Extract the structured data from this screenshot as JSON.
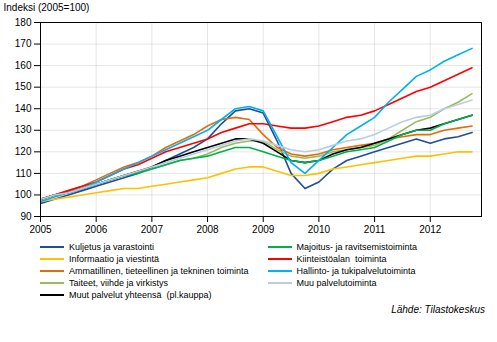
{
  "chart_data": {
    "type": "line",
    "ylabel": "Indeksi (2005=100)",
    "caption": "Lähde: Tilastokeskus",
    "xlim": [
      2005.0,
      2012.92
    ],
    "xticks": [
      2005,
      2006,
      2007,
      2008,
      2009,
      2010,
      2011,
      2012
    ],
    "ylim": [
      90,
      180
    ],
    "yticks": [
      90,
      100,
      110,
      120,
      130,
      140,
      150,
      160,
      170,
      180
    ],
    "grid": true,
    "legend": "bottom",
    "x": [
      2005.0,
      2005.25,
      2005.5,
      2005.75,
      2006.0,
      2006.25,
      2006.5,
      2006.75,
      2007.0,
      2007.25,
      2007.5,
      2007.75,
      2008.0,
      2008.25,
      2008.5,
      2008.75,
      2009.0,
      2009.25,
      2009.5,
      2009.75,
      2010.0,
      2010.25,
      2010.5,
      2010.75,
      2011.0,
      2011.25,
      2011.5,
      2011.75,
      2012.0,
      2012.25,
      2012.5,
      2012.75
    ],
    "series": [
      {
        "name": "Kuljetus ja varastointi",
        "color": "#1f4e99",
        "values": [
          96,
          98,
          100,
          102,
          104,
          106,
          108,
          110,
          113,
          116,
          119,
          122,
          126,
          133,
          139,
          140,
          138,
          125,
          110,
          103,
          106,
          112,
          116,
          118,
          120,
          122,
          124,
          126,
          124,
          126,
          127,
          129
        ]
      },
      {
        "name": "Informaatio ja viestintä",
        "color": "#ffc000",
        "values": [
          97,
          98,
          99,
          100,
          101,
          102,
          103,
          103,
          104,
          105,
          106,
          107,
          108,
          110,
          112,
          113,
          113,
          111,
          109,
          109,
          110,
          112,
          113,
          114,
          115,
          116,
          117,
          118,
          118,
          119,
          120,
          120
        ]
      },
      {
        "name": "Ammatillinen, tieteellinen ja tekninen toiminta",
        "color": "#e36c0a",
        "values": [
          98,
          100,
          102,
          104,
          107,
          110,
          113,
          115,
          118,
          122,
          125,
          128,
          132,
          135,
          136,
          135,
          128,
          122,
          119,
          118,
          119,
          121,
          122,
          123,
          124,
          126,
          127,
          128,
          128,
          130,
          131,
          132
        ]
      },
      {
        "name": "Taiteet, viihde ja virkistys",
        "color": "#9bbb59",
        "values": [
          98,
          100,
          101,
          103,
          105,
          107,
          109,
          111,
          112,
          114,
          116,
          117,
          119,
          122,
          124,
          125,
          125,
          121,
          118,
          117,
          118,
          120,
          121,
          122,
          123,
          126,
          130,
          134,
          136,
          140,
          143,
          147
        ]
      },
      {
        "name": "Muut palvelut yhteensä  (pl.kauppa)",
        "color": "#000000",
        "values": [
          98,
          100,
          101,
          103,
          105,
          107,
          109,
          111,
          113,
          116,
          118,
          120,
          122,
          124,
          126,
          126,
          124,
          120,
          116,
          115,
          116,
          119,
          121,
          122,
          124,
          126,
          128,
          130,
          131,
          133,
          135,
          137
        ]
      },
      {
        "name": "Majoitus- ja ravitsemistoiminta",
        "color": "#00b050",
        "values": [
          98,
          100,
          101,
          103,
          105,
          107,
          109,
          110,
          112,
          114,
          116,
          117,
          118,
          120,
          122,
          122,
          120,
          118,
          116,
          115,
          116,
          118,
          120,
          121,
          122,
          125,
          128,
          130,
          130,
          133,
          135,
          137
        ]
      },
      {
        "name": "Kiinteistöalan  toiminta",
        "color": "#ff0000",
        "values": [
          98,
          100,
          102,
          104,
          106,
          109,
          112,
          114,
          117,
          120,
          122,
          124,
          126,
          129,
          131,
          133,
          133,
          132,
          131,
          131,
          132,
          134,
          136,
          137,
          139,
          142,
          145,
          148,
          150,
          153,
          156,
          159
        ]
      },
      {
        "name": "Hallinto- ja tukipalvelutoiminta",
        "color": "#00b0f0",
        "values": [
          97,
          99,
          101,
          103,
          106,
          109,
          112,
          115,
          118,
          121,
          124,
          127,
          130,
          135,
          140,
          141,
          139,
          127,
          115,
          110,
          116,
          122,
          128,
          132,
          136,
          143,
          149,
          155,
          158,
          162,
          165,
          168
        ]
      },
      {
        "name": "Muu palvelutoiminta",
        "color": "#b8cce4",
        "values": [
          98,
          100,
          101,
          103,
          105,
          107,
          109,
          111,
          113,
          115,
          117,
          119,
          121,
          123,
          125,
          126,
          125,
          123,
          121,
          120,
          121,
          123,
          125,
          126,
          128,
          131,
          134,
          136,
          137,
          140,
          142,
          144
        ]
      }
    ]
  }
}
